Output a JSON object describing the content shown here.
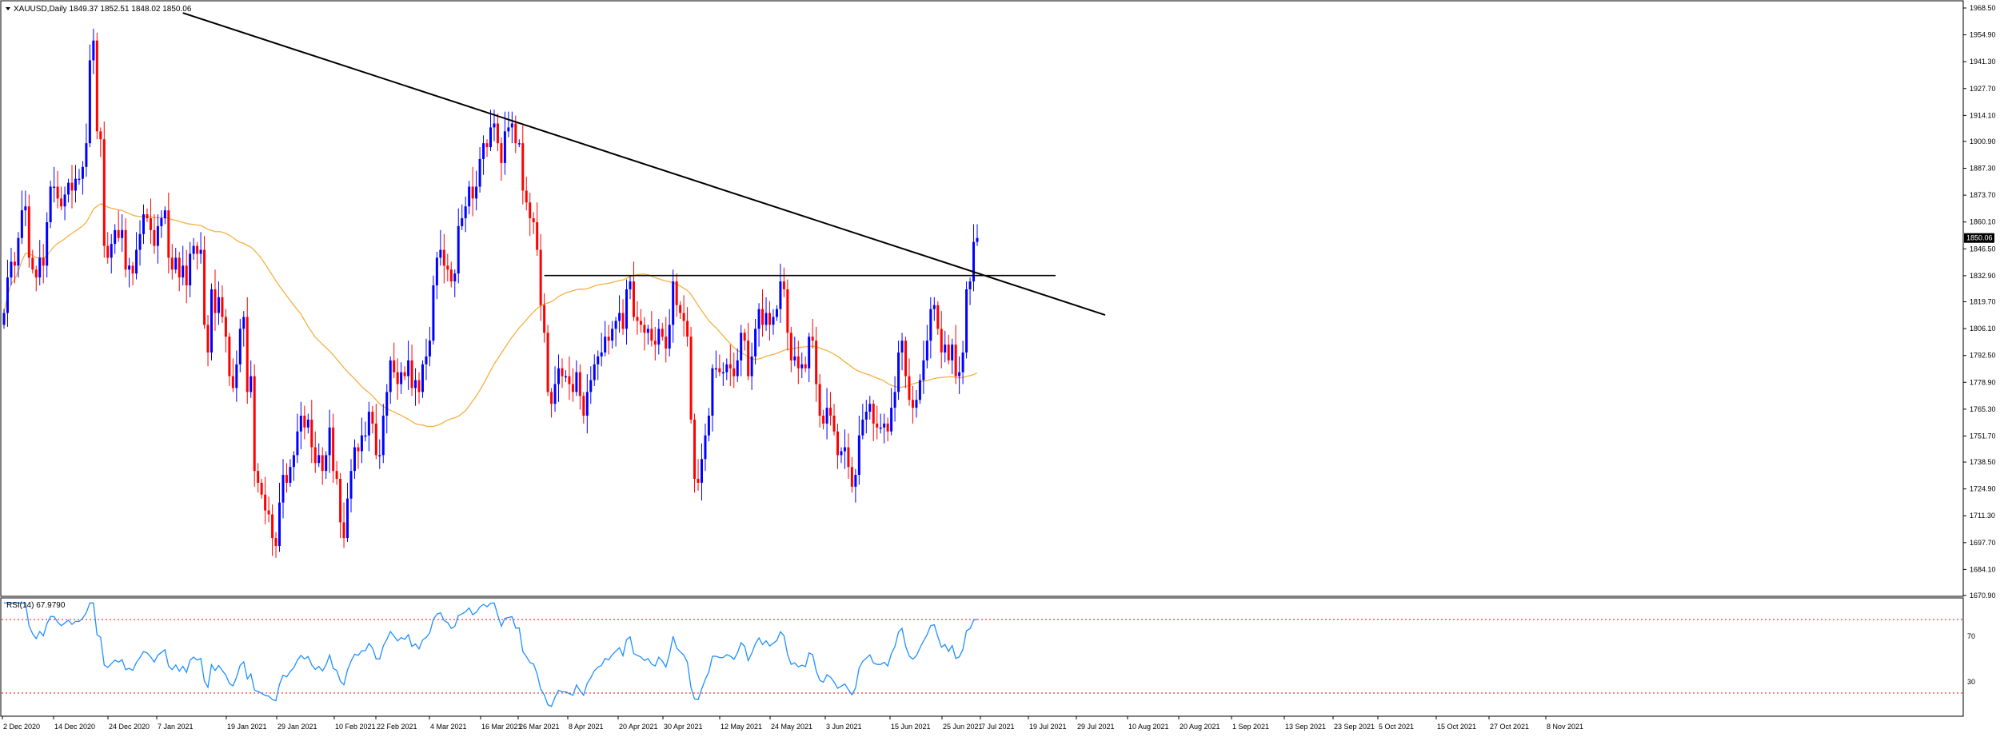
{
  "header": {
    "symbol_line": "XAUUSD,Daily  1849.37 1852.51 1848.02 1850.06",
    "last_price": "1850.06"
  },
  "rsi": {
    "label": "RSI(14) 67.9790",
    "levels": [
      70,
      30
    ],
    "ticks": [
      "70",
      "30"
    ]
  },
  "colors": {
    "bull": "#0000ff",
    "bear": "#ff0000",
    "ma": "#f5b041",
    "rsi": "#1e90ff",
    "trendline": "#000000",
    "price_tag_bg": "#000000",
    "price_tag_fg": "#ffffff",
    "level_dotted": "#ff0000",
    "grid": "#000000"
  },
  "chart_data": [
    {
      "type": "candlestick",
      "symbol": "XAUUSD",
      "timeframe": "Daily",
      "ohlc_header": {
        "open": 1849.37,
        "high": 1852.51,
        "low": 1848.02,
        "close": 1850.06
      },
      "ylim": [
        1670.9,
        1968.5
      ],
      "y_ticks": [
        "1968.50",
        "1954.90",
        "1941.30",
        "1927.70",
        "1914.10",
        "1900.90",
        "1887.30",
        "1873.70",
        "1860.10",
        "1846.50",
        "1832.90",
        "1819.70",
        "1806.10",
        "1792.50",
        "1778.90",
        "1765.30",
        "1751.70",
        "1738.50",
        "1724.90",
        "1711.30",
        "1697.70",
        "1684.10",
        "1670.90"
      ],
      "x_ticks": [
        "2 Dec 2020",
        "14 Dec 2020",
        "24 Dec 2020",
        "7 Jan 2021",
        "19 Jan 2021",
        "29 Jan 2021",
        "10 Feb 2021",
        "22 Feb 2021",
        "4 Mar 2021",
        "16 Mar 2021",
        "26 Mar 2021",
        "8 Apr 2021",
        "20 Apr 2021",
        "30 Apr 2021",
        "12 May 2021",
        "24 May 2021",
        "3 Jun 2021",
        "15 Jun 2021",
        "25 Jun 2021",
        "7 Jul 2021",
        "19 Jul 2021",
        "29 Jul 2021",
        "10 Aug 2021",
        "20 Aug 2021",
        "1 Sep 2021",
        "13 Sep 2021",
        "23 Sep 2021",
        "5 Oct 2021",
        "15 Oct 2021",
        "27 Oct 2021",
        "8 Nov 2021"
      ],
      "closes": [
        1814,
        1832,
        1840,
        1838,
        1852,
        1866,
        1868,
        1842,
        1836,
        1832,
        1842,
        1838,
        1860,
        1878,
        1878,
        1872,
        1868,
        1874,
        1880,
        1876,
        1882,
        1882,
        1888,
        1900,
        1942,
        1952,
        1906,
        1902,
        1848,
        1842,
        1849,
        1856,
        1852,
        1856,
        1836,
        1838,
        1834,
        1846,
        1854,
        1864,
        1862,
        1856,
        1848,
        1858,
        1862,
        1866,
        1842,
        1836,
        1842,
        1832,
        1838,
        1828,
        1844,
        1848,
        1844,
        1846,
        1808,
        1794,
        1826,
        1814,
        1822,
        1812,
        1802,
        1782,
        1776,
        1788,
        1806,
        1812,
        1774,
        1782,
        1734,
        1728,
        1722,
        1714,
        1712,
        1700,
        1696,
        1718,
        1732,
        1728,
        1736,
        1742,
        1754,
        1762,
        1756,
        1760,
        1746,
        1738,
        1742,
        1734,
        1742,
        1756,
        1734,
        1730,
        1708,
        1700,
        1720,
        1734,
        1746,
        1744,
        1752,
        1752,
        1764,
        1758,
        1742,
        1742,
        1762,
        1774,
        1790,
        1784,
        1778,
        1784,
        1782,
        1790,
        1776,
        1780,
        1774,
        1788,
        1792,
        1800,
        1828,
        1842,
        1846,
        1838,
        1836,
        1830,
        1834,
        1858,
        1862,
        1868,
        1878,
        1872,
        1878,
        1892,
        1900,
        1898,
        1908,
        1910,
        1900,
        1890,
        1906,
        1908,
        1910,
        1900,
        1900,
        1876,
        1870,
        1862,
        1860,
        1846,
        1818,
        1804,
        1774,
        1768,
        1778,
        1786,
        1782,
        1782,
        1778,
        1774,
        1784,
        1772,
        1762,
        1774,
        1780,
        1788,
        1792,
        1794,
        1802,
        1800,
        1806,
        1810,
        1814,
        1806,
        1826,
        1830,
        1812,
        1810,
        1808,
        1804,
        1806,
        1800,
        1798,
        1806,
        1802,
        1796,
        1808,
        1830,
        1818,
        1814,
        1810,
        1802,
        1760,
        1730,
        1728,
        1740,
        1752,
        1762,
        1786,
        1786,
        1784,
        1784,
        1788,
        1786,
        1782,
        1790,
        1804,
        1800,
        1782,
        1792,
        1806,
        1816,
        1808,
        1814,
        1808,
        1812,
        1816,
        1830,
        1826,
        1804,
        1790,
        1792,
        1786,
        1788,
        1786,
        1802,
        1800,
        1778,
        1762,
        1758,
        1766,
        1762,
        1754,
        1742,
        1744,
        1746,
        1736,
        1726,
        1732,
        1752,
        1760,
        1764,
        1768,
        1758,
        1756,
        1756,
        1758,
        1754,
        1766,
        1774,
        1794,
        1800,
        1782,
        1770,
        1766,
        1770,
        1780,
        1790,
        1800,
        1816,
        1818,
        1806,
        1794,
        1798,
        1790,
        1798,
        1782,
        1784,
        1794,
        1826,
        1830,
        1850,
        1852
      ]
    },
    {
      "type": "line",
      "name": "RSI(14)",
      "ylim": [
        20,
        80
      ],
      "levels": [
        70,
        30
      ],
      "last_value": 67.979
    }
  ]
}
